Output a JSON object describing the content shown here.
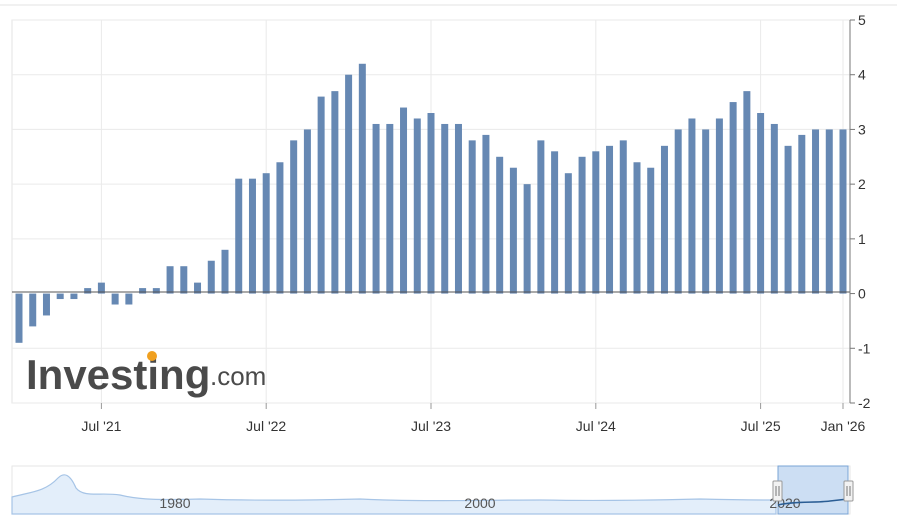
{
  "watermark": {
    "brand": "Investing",
    "suffix": ".com"
  },
  "colors": {
    "bar": "#6688b3",
    "bar_faded": "#a9bcd8",
    "grid": "#eaeaea",
    "nav_line": "#a6c4e6",
    "nav_fill": "#e3eefa"
  },
  "chart_data": {
    "type": "bar",
    "x_start": "2021-01",
    "x_end": "2026-01",
    "values": [
      -0.9,
      -0.6,
      -0.4,
      -0.1,
      -0.1,
      0.1,
      0.2,
      -0.2,
      -0.2,
      0.1,
      0.1,
      0.5,
      0.5,
      0.2,
      0.6,
      0.8,
      2.1,
      2.1,
      2.2,
      2.4,
      2.8,
      3.0,
      3.6,
      3.7,
      4.0,
      4.2,
      3.1,
      3.1,
      3.4,
      3.2,
      3.3,
      3.1,
      3.1,
      2.8,
      2.9,
      2.5,
      2.3,
      2.0,
      2.8,
      2.6,
      2.2,
      2.5,
      2.6,
      2.7,
      2.8,
      2.4,
      2.3,
      2.7,
      3.0,
      3.2,
      3.0,
      3.2,
      3.5,
      3.7,
      3.3,
      3.1,
      2.7,
      2.9,
      3.0,
      3.0,
      3.0
    ],
    "ylim": [
      -2,
      5
    ],
    "y_ticks": [
      "5",
      "4",
      "3",
      "2",
      "1",
      "0",
      "-1",
      "-2"
    ],
    "x_ticks": [
      "Jul '21",
      "Jul '22",
      "Jul '23",
      "Jul '24",
      "Jul '25",
      "Jan '26"
    ],
    "grid": true,
    "navigator": {
      "labels": [
        "1980",
        "2000",
        "2020"
      ]
    }
  }
}
